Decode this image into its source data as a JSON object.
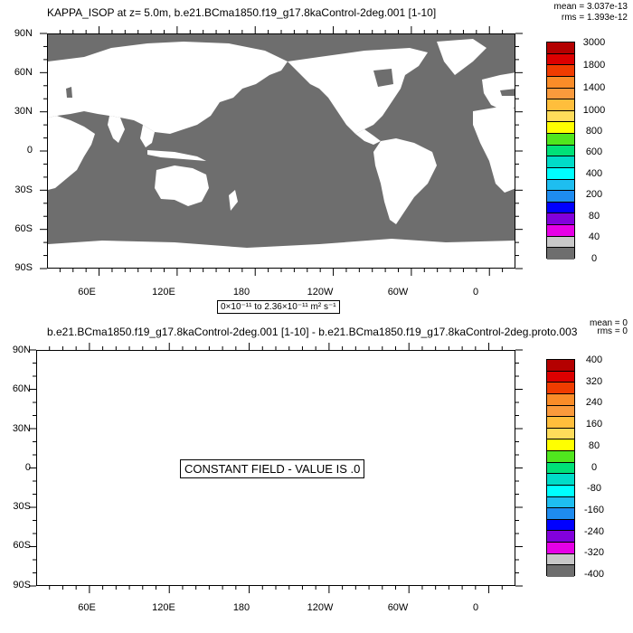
{
  "panel1": {
    "title": "KAPPA_ISOP at z=   5.0m, b.e21.BCma1850.f19_g17.8kaControl-2deg.001 [1-10]",
    "mean": "mean = 3.037e-13",
    "rms": "rms = 1.393e-12",
    "y_ticks": [
      "90N",
      "60N",
      "30N",
      "0",
      "30S",
      "60S",
      "90S"
    ],
    "x_ticks": [
      "60E",
      "120E",
      "180",
      "120W",
      "60W",
      "0"
    ],
    "range_text": "0×10⁻¹¹ to 2.36×10⁻¹¹ m² s⁻¹",
    "colorbar_labels": [
      "3000",
      "1800",
      "1400",
      "1000",
      "800",
      "600",
      "400",
      "200",
      "80",
      "40",
      "0"
    ]
  },
  "panel2": {
    "title": "b.e21.BCma1850.f19_g17.8kaControl-2deg.001 [1-10] - b.e21.BCma1850.f19_g17.8kaControl-2deg.proto.003",
    "mean": "mean = 0",
    "rms": "rms = 0",
    "y_ticks": [
      "90N",
      "60N",
      "30N",
      "0",
      "30S",
      "60S",
      "90S"
    ],
    "x_ticks": [
      "60E",
      "120E",
      "180",
      "120W",
      "60W",
      "0"
    ],
    "constant_text": "CONSTANT FIELD - VALUE IS .0",
    "colorbar_labels": [
      "400",
      "320",
      "240",
      "160",
      "80",
      "0",
      "-80",
      "-160",
      "-240",
      "-320",
      "-400"
    ]
  },
  "colors": {
    "ocean": "#6e6e6e",
    "land": "#ffffff",
    "colorbar": [
      "#b40000",
      "#dc0000",
      "#f03c00",
      "#fa8c28",
      "#fa9a3c",
      "#ffbe3c",
      "#ffdc5a",
      "#ffff00",
      "#50e61e",
      "#00e178",
      "#00dcc8",
      "#00ffff",
      "#1ebef0",
      "#1e8cf0",
      "#0000ff",
      "#8200dc",
      "#e600e6",
      "#c8c8c8",
      "#6e6e6e"
    ]
  }
}
